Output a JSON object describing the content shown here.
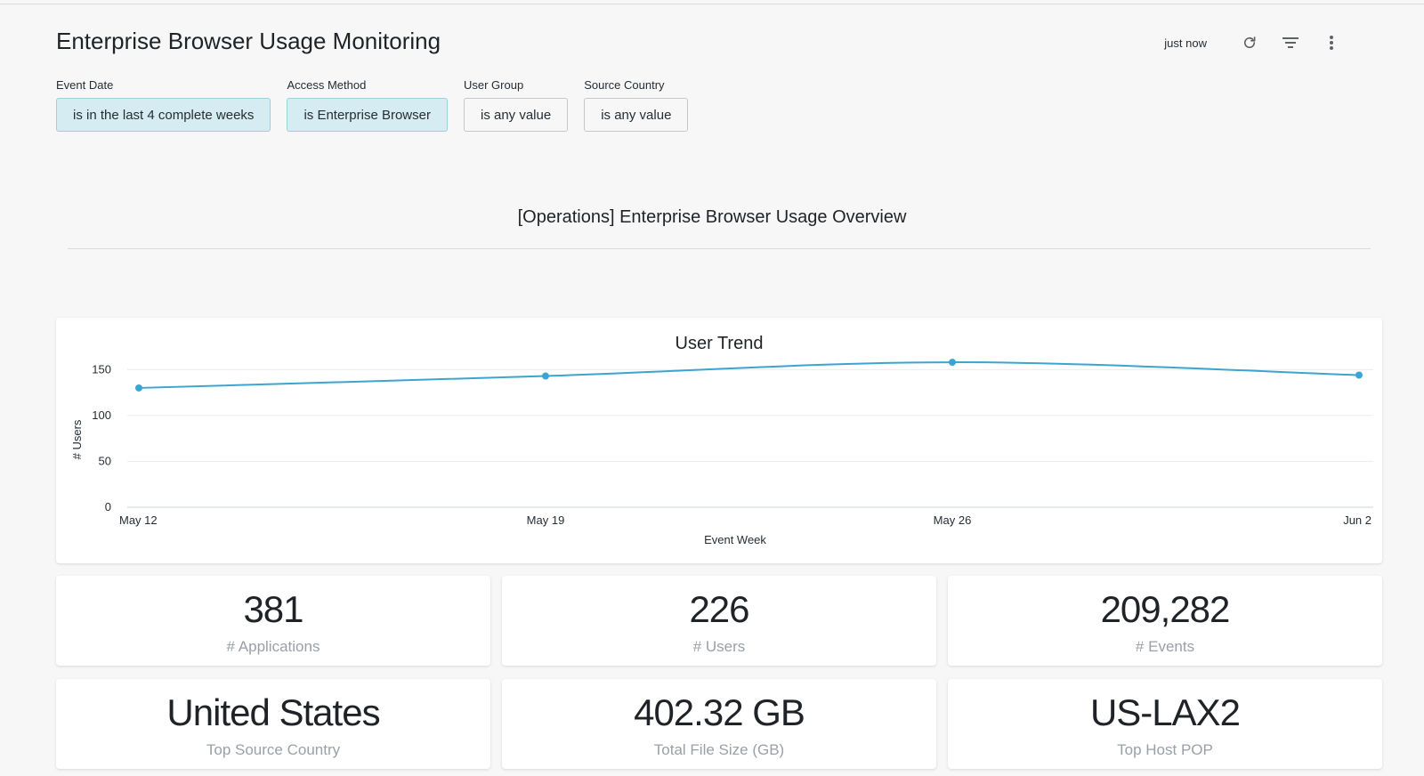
{
  "header": {
    "title": "Enterprise Browser Usage Monitoring",
    "updated": "just now",
    "icons": [
      "refresh-icon",
      "filter-icon",
      "more-vertical-icon"
    ]
  },
  "filters": [
    {
      "label": "Event Date",
      "value": "is in the last 4 complete weeks",
      "active": true
    },
    {
      "label": "Access Method",
      "value": "is Enterprise Browser",
      "active": true
    },
    {
      "label": "User Group",
      "value": "is any value",
      "active": false
    },
    {
      "label": "Source Country",
      "value": "is any value",
      "active": false
    }
  ],
  "section": {
    "title": "[Operations] Enterprise Browser Usage Overview"
  },
  "chart_data": {
    "type": "line",
    "title": "User Trend",
    "xlabel": "Event Week",
    "ylabel": "# Users",
    "categories": [
      "May 12",
      "May 19",
      "May 26",
      "Jun 2"
    ],
    "series": [
      {
        "values": [
          130,
          143,
          158,
          144
        ]
      }
    ],
    "ylim": [
      0,
      160
    ],
    "yticks": [
      0,
      50,
      100,
      150
    ],
    "grid": true,
    "color": "#3aa5d1"
  },
  "kpis": [
    {
      "value": "381",
      "label": "# Applications"
    },
    {
      "value": "226",
      "label": "# Users"
    },
    {
      "value": "209,282",
      "label": "# Events"
    },
    {
      "value": "United States",
      "label": "Top Source Country"
    },
    {
      "value": "402.32 GB",
      "label": "Total File Size (GB)"
    },
    {
      "value": "US-LAX2",
      "label": "Top Host POP"
    }
  ]
}
